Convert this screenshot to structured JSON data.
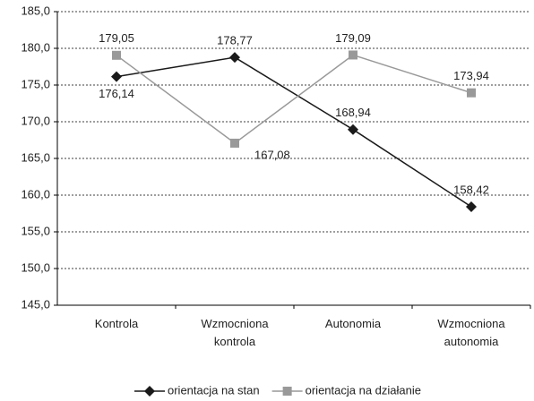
{
  "chart_data": {
    "type": "line",
    "categories": [
      "Kontrola",
      "Wzmocniona kontrola",
      "Autonomia",
      "Wzmocniona autonomia"
    ],
    "series": [
      {
        "name": "orientacja na stan",
        "color": "#1a1a1a",
        "marker": "diamond",
        "values": [
          176.14,
          178.77,
          168.94,
          158.42
        ],
        "value_labels": [
          "176,14",
          "178,77",
          "168,94",
          "158,42"
        ]
      },
      {
        "name": "orientacja na działanie",
        "color": "#999999",
        "marker": "square",
        "values": [
          179.05,
          167.08,
          179.09,
          173.94
        ],
        "value_labels": [
          "179,05",
          "167,08",
          "179,09",
          "173,94"
        ]
      }
    ],
    "ylim": [
      145,
      185
    ],
    "yticks": [
      {
        "value": 145,
        "label": "145,0"
      },
      {
        "value": 150,
        "label": "150,0"
      },
      {
        "value": 155,
        "label": "155,0"
      },
      {
        "value": 160,
        "label": "160,0"
      },
      {
        "value": 165,
        "label": "165,0"
      },
      {
        "value": 170,
        "label": "170,0"
      },
      {
        "value": 175,
        "label": "175,0"
      },
      {
        "value": 180,
        "label": "180,0"
      },
      {
        "value": 185,
        "label": "185,0"
      }
    ],
    "grid": true,
    "legend": "bottom"
  }
}
